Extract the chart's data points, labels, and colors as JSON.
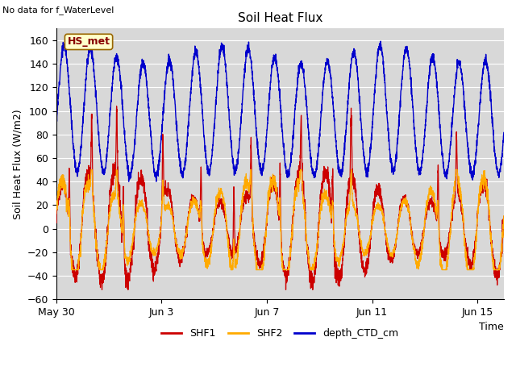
{
  "title": "Soil Heat Flux",
  "top_left_text": "No data for f_WaterLevel",
  "box_label": "HS_met",
  "ylabel": "Soil Heat Flux (W/m2)",
  "xlabel": "Time",
  "xlim_days": [
    0,
    17
  ],
  "ylim": [
    -60,
    170
  ],
  "yticks": [
    -60,
    -40,
    -20,
    0,
    20,
    40,
    60,
    80,
    100,
    120,
    140,
    160
  ],
  "xtick_labels": [
    "May 30",
    "Jun 3",
    "Jun 7",
    "Jun 11",
    "Jun 15"
  ],
  "xtick_positions": [
    0,
    4,
    8,
    12,
    16
  ],
  "colors": {
    "SHF1": "#cc0000",
    "SHF2": "#ffaa00",
    "depth_CTD_cm": "#0000cc"
  },
  "background_plot": "#d8d8d8",
  "background_fig": "#ffffff",
  "grid_color": "#ffffff",
  "title_fontsize": 11,
  "label_fontsize": 9,
  "tick_fontsize": 9
}
